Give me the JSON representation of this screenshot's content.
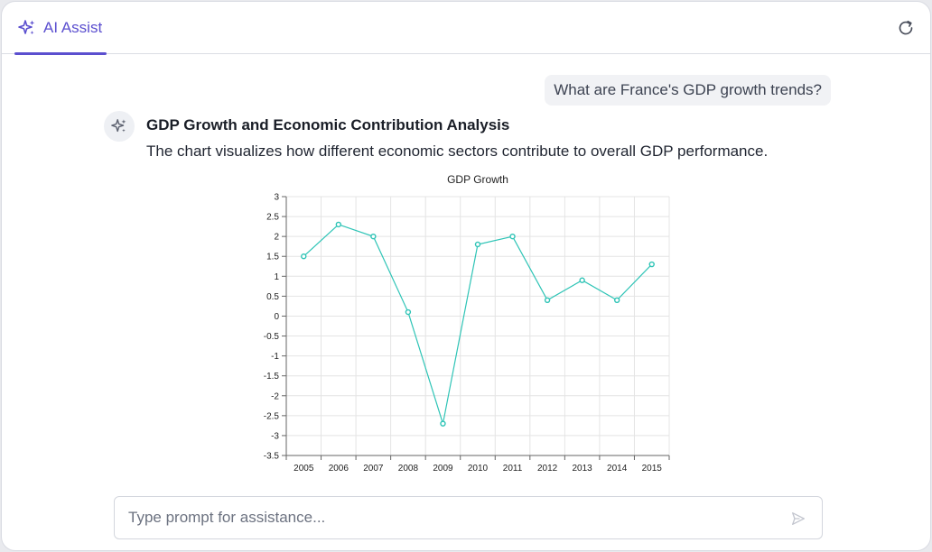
{
  "header": {
    "tab_label": "AI Assist",
    "tab_icon": "sparkles-icon",
    "refresh_icon": "refresh-icon"
  },
  "conversation": {
    "user_message": "What are France's GDP growth trends?",
    "ai_title": "GDP Growth and Economic Contribution Analysis",
    "ai_description": "The chart visualizes how different economic sectors contribute to overall GDP performance."
  },
  "input": {
    "placeholder": "Type prompt for assistance...",
    "value": "",
    "send_icon": "send-icon"
  },
  "colors": {
    "accent": "#5b4fcf",
    "series": "#2ec4b6"
  },
  "chart_data": {
    "type": "line",
    "title": "GDP Growth",
    "xlabel": "",
    "ylabel": "",
    "x": [
      "2005",
      "2006",
      "2007",
      "2008",
      "2009",
      "2010",
      "2011",
      "2012",
      "2013",
      "2014",
      "2015"
    ],
    "series": [
      {
        "values": [
          1.5,
          2.3,
          2.0,
          0.1,
          -2.7,
          1.8,
          2.0,
          0.4,
          0.9,
          0.4,
          1.3
        ]
      }
    ],
    "ylim": [
      -3.5,
      3
    ],
    "yticks": [
      "3",
      "2.5",
      "2",
      "1.5",
      "1",
      "0.5",
      "0",
      "-0.5",
      "-1",
      "-1.5",
      "-2",
      "-2.5",
      "-3",
      "-3.5"
    ],
    "grid": true,
    "legend": "none"
  }
}
